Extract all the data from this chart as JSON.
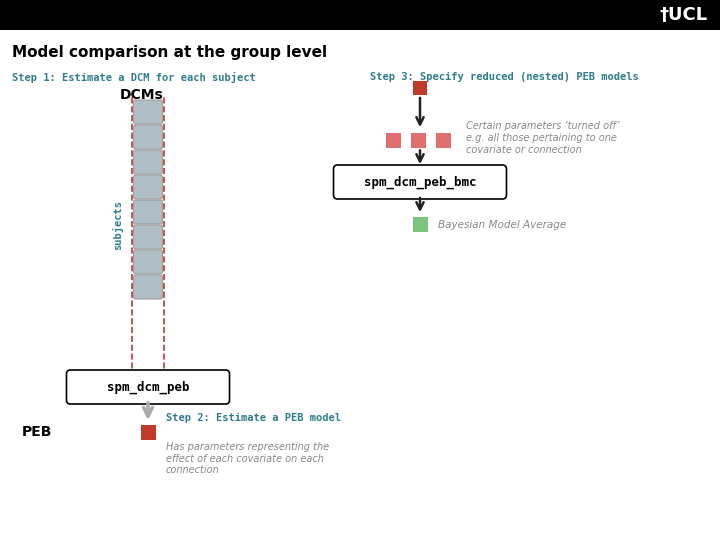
{
  "title": "Model comparison at the group level",
  "title_fontsize": 11,
  "header_bg": "#000000",
  "header_text_color": "#ffffff",
  "ucl_text": "†UCL",
  "bg_color": "#ffffff",
  "step1_text": "Step 1: Estimate a DCM for each subject",
  "step1_color": "#2e7d8a",
  "step2_title": "Step 2: Estimate a PEB model",
  "step2_color": "#2e7d8a",
  "step2_desc": "Has parameters representing the\neffect of each covariate on each\nconnection",
  "step3_text": "Step 3: Specify reduced (nested) PEB models",
  "step3_color": "#2e7d8a",
  "dcms_label": "DCMs",
  "subjects_label": "subjects",
  "peb_label": "PEB",
  "spm_dcm_peb_label": "spm_dcm_peb",
  "spm_dcm_peb_bmc_label": "spm_dcm_peb_bmc",
  "certain_params_text": "Certain parameters ‘turned off’\ne.g. all those pertaining to one\ncovariate or connection",
  "bma_text": "Bayesian Model Average",
  "box_bg": "#ffffff",
  "box_border": "#000000",
  "dcm_box_color": "#b0bec5",
  "dcm_box_border": "#9e9e9e",
  "dashed_line_color": "#c0392b",
  "arrow_color": "#aaaaaa",
  "dark_arrow_color": "#222222",
  "red_square_color": "#c0392b",
  "pink_square_color": "#e07070",
  "green_square_color": "#7dc47d",
  "italic_text_color": "#888888",
  "step2_italic_color": "#888888"
}
